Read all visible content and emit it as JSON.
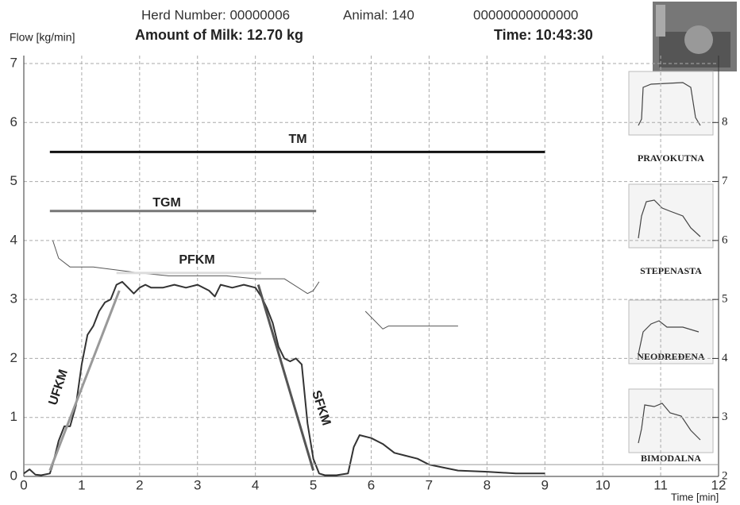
{
  "chart_data": {
    "type": "line",
    "header": [
      "Herd Number: 00000006",
      "Animal: 140",
      "00000000000000"
    ],
    "ylabel": "Flow [kg/min]",
    "amount": "Amount of Milk: 12.70 kg",
    "time": "Time: 10:43:30",
    "xlabel": "Time [min]",
    "xlim": [
      0,
      12
    ],
    "xticks": [
      0,
      1,
      2,
      3,
      4,
      5,
      6,
      7,
      8,
      9,
      10,
      11,
      12
    ],
    "ylim": [
      0,
      7
    ],
    "yticks": [
      0,
      1,
      2,
      3,
      4,
      5,
      6,
      7
    ],
    "y2lim": [
      2,
      9
    ],
    "y2ticks": [
      2,
      3,
      4,
      5,
      6,
      7,
      8
    ],
    "grid": true,
    "series": [
      {
        "color": "#333333",
        "width": 2,
        "x": [
          0,
          0.1,
          0.2,
          0.3,
          0.45,
          0.5,
          0.6,
          0.7,
          0.8,
          0.9,
          1.0,
          1.1,
          1.2,
          1.3,
          1.4,
          1.5,
          1.6,
          1.7,
          1.8,
          1.9,
          2.0,
          2.1,
          2.2,
          2.4,
          2.6,
          2.8,
          3.0,
          3.2,
          3.3,
          3.4,
          3.6,
          3.8,
          4.0,
          4.1,
          4.2,
          4.3,
          4.4,
          4.5,
          4.6,
          4.7,
          4.8,
          4.9,
          5.0,
          5.1,
          5.2,
          5.4,
          5.6,
          5.7,
          5.8,
          6.0,
          6.2,
          6.4,
          6.6,
          6.8,
          7.0,
          7.5,
          8.0,
          8.5,
          9.0
        ],
        "values": [
          0.05,
          0.12,
          0.03,
          0.02,
          0.05,
          0.2,
          0.6,
          0.85,
          0.85,
          1.2,
          1.9,
          2.4,
          2.55,
          2.8,
          2.95,
          3.0,
          3.25,
          3.3,
          3.2,
          3.1,
          3.2,
          3.25,
          3.2,
          3.2,
          3.25,
          3.2,
          3.25,
          3.15,
          3.05,
          3.25,
          3.2,
          3.25,
          3.2,
          3.05,
          2.85,
          2.6,
          2.2,
          2.0,
          1.95,
          2.0,
          1.9,
          0.9,
          0.3,
          0.05,
          0.02,
          0.02,
          0.05,
          0.5,
          0.7,
          0.65,
          0.55,
          0.4,
          0.35,
          0.3,
          0.2,
          0.1,
          0.08,
          0.05,
          0.05
        ]
      },
      {
        "color": "#555555",
        "width": 1,
        "x": [
          0.5,
          0.6,
          0.8,
          1.2,
          1.6,
          2.0,
          2.5,
          3.0,
          3.5,
          4.0,
          4.5,
          4.9,
          5.0,
          5.1,
          5.5,
          5.9,
          6.2,
          6.3,
          6.6,
          7.0,
          7.5
        ],
        "values": [
          4.0,
          3.7,
          3.55,
          3.55,
          3.5,
          3.45,
          3.4,
          3.4,
          3.4,
          3.35,
          3.35,
          3.1,
          3.15,
          3.3,
          null,
          2.8,
          2.5,
          2.55,
          2.55,
          2.55,
          2.55
        ]
      },
      {
        "color": "#999999",
        "width": 1,
        "x": [
          0,
          12
        ],
        "values": [
          0.2,
          0.2
        ]
      },
      {
        "name": "TM",
        "color": "#111111",
        "width": 3,
        "x": [
          0.45,
          9
        ],
        "values": [
          5.5,
          5.5
        ]
      },
      {
        "name": "TGM",
        "color": "#777777",
        "width": 3,
        "x": [
          0.45,
          5.05
        ],
        "values": [
          4.5,
          4.5
        ]
      },
      {
        "name": "PFKM",
        "color": "#dddddd",
        "width": 3,
        "x": [
          1.6,
          4.1
        ],
        "values": [
          3.45,
          3.45
        ]
      },
      {
        "name": "UFKM",
        "color": "#999999",
        "width": 3,
        "x": [
          0.45,
          1.65
        ],
        "values": [
          0.1,
          3.15
        ]
      },
      {
        "name": "SFKM",
        "color": "#555555",
        "width": 3,
        "x": [
          4.05,
          5.0
        ],
        "values": [
          3.25,
          0.1
        ]
      }
    ],
    "thumbnail_labels": [
      "PRAVOKUTNA",
      "STEPENASTA",
      "NEODREĐENA",
      "BIMODALNA"
    ]
  }
}
